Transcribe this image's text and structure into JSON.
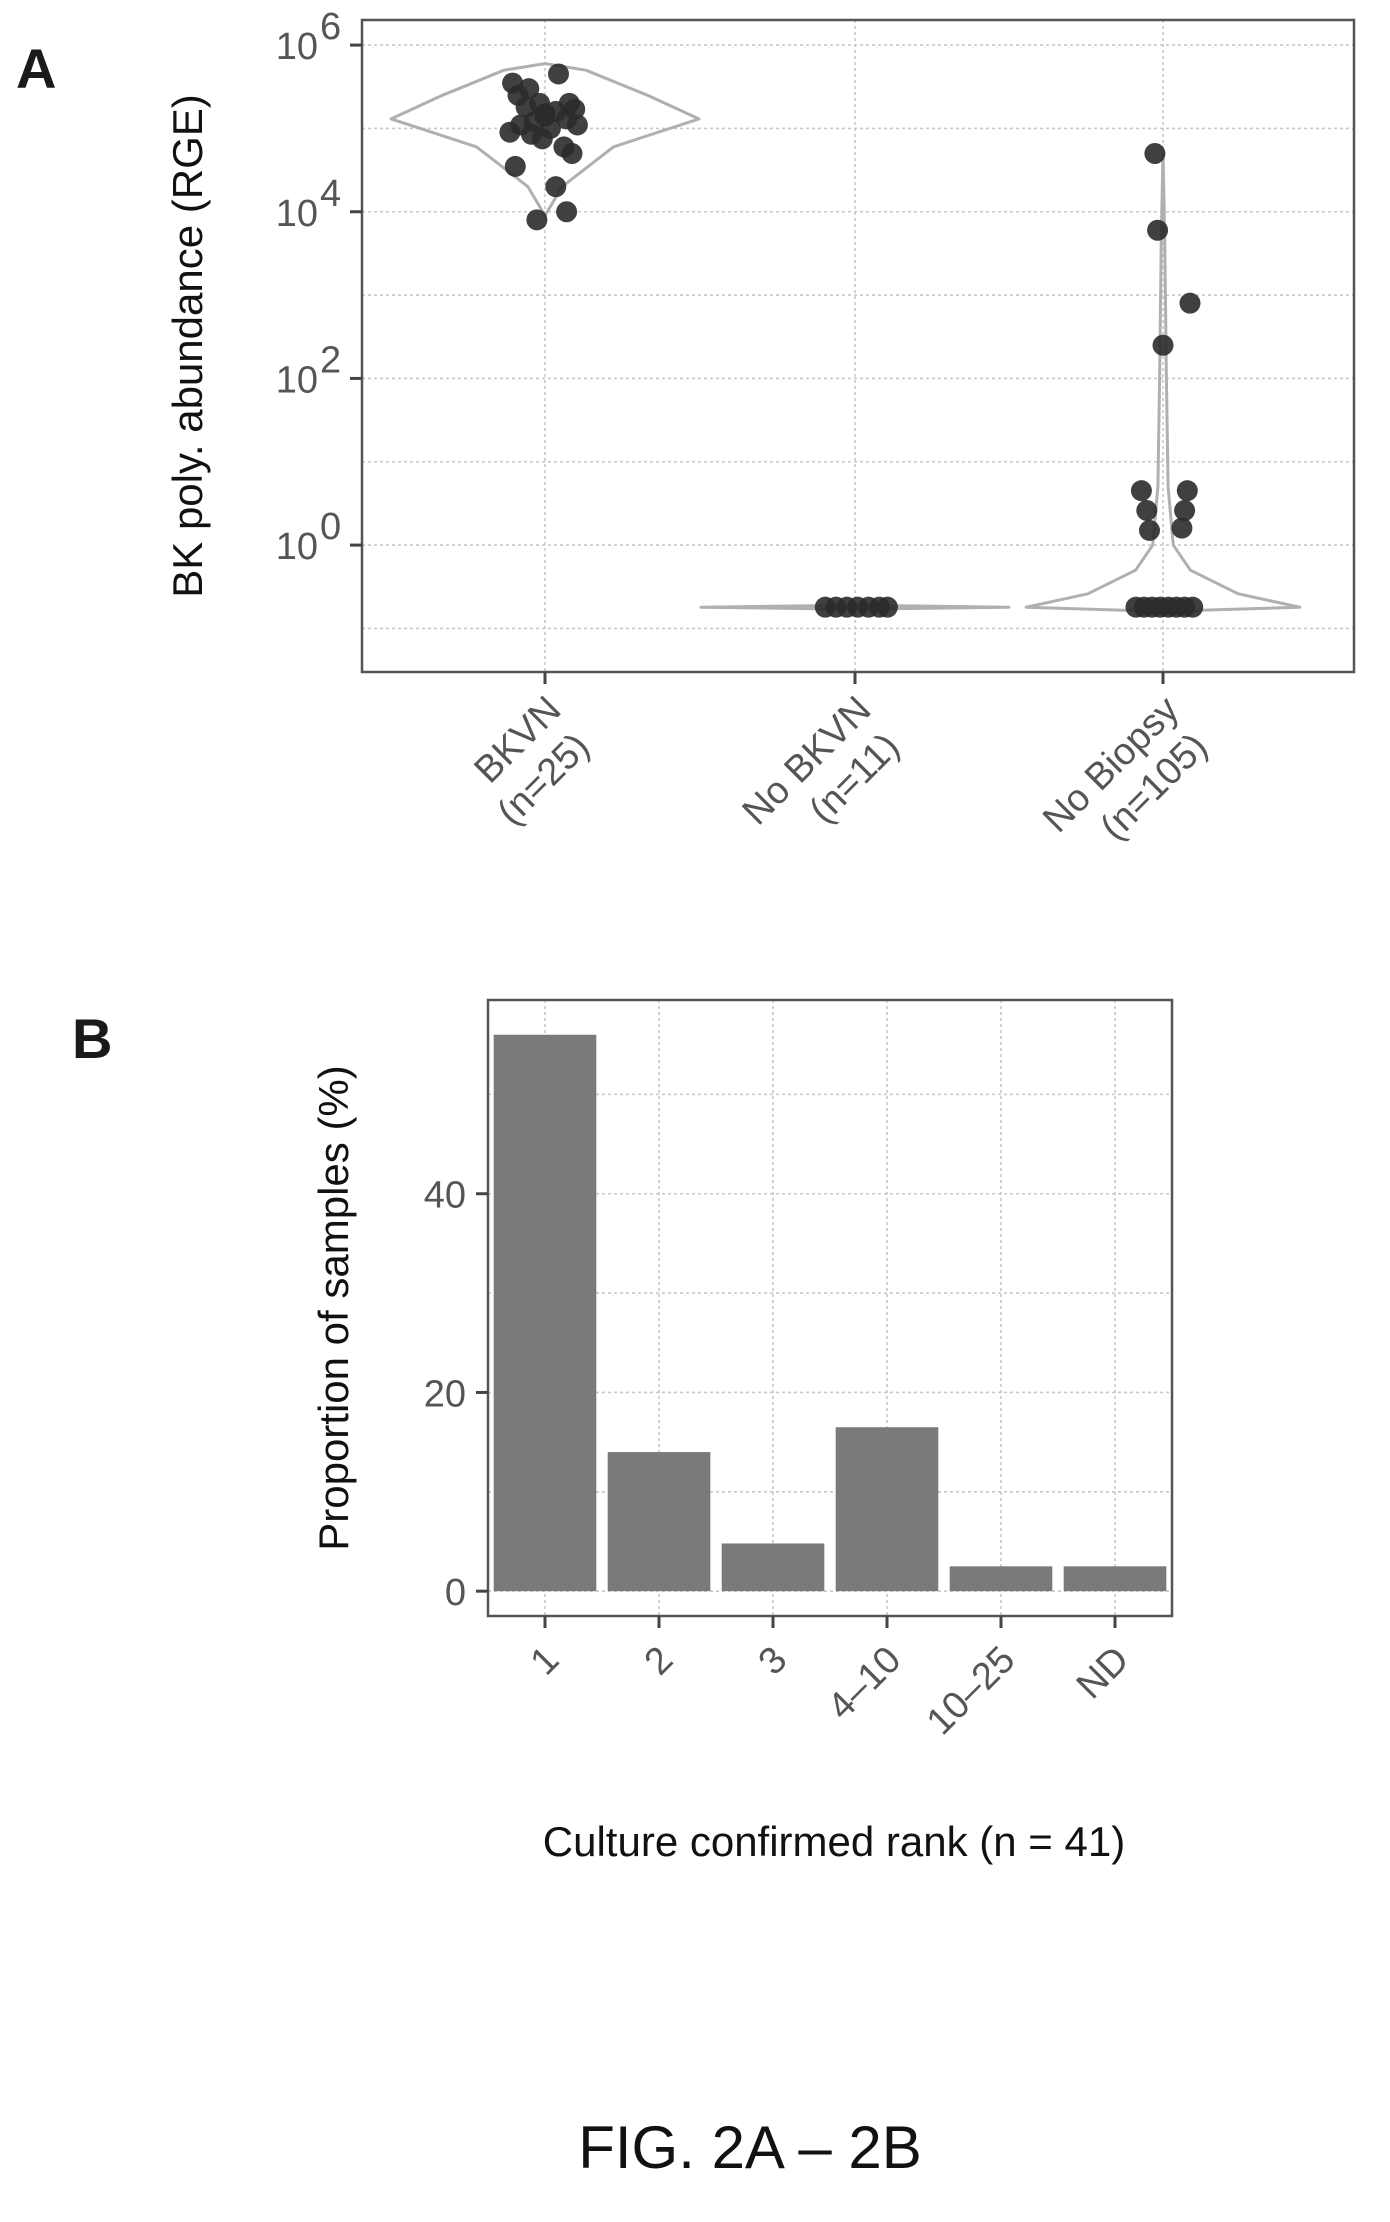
{
  "figure_caption": "FIG. 2A – 2B",
  "chart_data": [
    {
      "panel": "A",
      "type": "scatter",
      "overlay": "violin",
      "ylabel": "BK poly. abundance (RGE)",
      "yscale": "log",
      "ylim": [
        0.03,
        2000000
      ],
      "yticks": [
        {
          "value": 1,
          "base": "10",
          "exp": "0"
        },
        {
          "value": 100,
          "base": "10",
          "exp": "2"
        },
        {
          "value": 10000,
          "base": "10",
          "exp": "4"
        },
        {
          "value": 1000000,
          "base": "10",
          "exp": "6"
        }
      ],
      "grid": true,
      "categories": [
        {
          "line1": "BKVN",
          "line2": "(n=25)"
        },
        {
          "line1": "No BKVN",
          "line2": "(n=11)"
        },
        {
          "line1": "No Biopsy",
          "line2": "(n=105)"
        }
      ],
      "points": [
        {
          "cat": 0,
          "dx": -0.12,
          "y": 350000
        },
        {
          "cat": 0,
          "dx": -0.1,
          "y": 250000
        },
        {
          "cat": 0,
          "dx": -0.06,
          "y": 300000
        },
        {
          "cat": 0,
          "dx": 0.05,
          "y": 450000
        },
        {
          "cat": 0,
          "dx": -0.02,
          "y": 200000
        },
        {
          "cat": 0,
          "dx": 0.0,
          "y": 150000
        },
        {
          "cat": 0,
          "dx": 0.04,
          "y": 160000
        },
        {
          "cat": 0,
          "dx": 0.09,
          "y": 200000
        },
        {
          "cat": 0,
          "dx": 0.11,
          "y": 170000
        },
        {
          "cat": 0,
          "dx": 0.08,
          "y": 130000
        },
        {
          "cat": 0,
          "dx": -0.04,
          "y": 120000
        },
        {
          "cat": 0,
          "dx": -0.09,
          "y": 110000
        },
        {
          "cat": 0,
          "dx": -0.13,
          "y": 90000
        },
        {
          "cat": 0,
          "dx": 0.02,
          "y": 100000
        },
        {
          "cat": 0,
          "dx": -0.05,
          "y": 85000
        },
        {
          "cat": 0,
          "dx": 0.12,
          "y": 110000
        },
        {
          "cat": 0,
          "dx": -0.01,
          "y": 75000
        },
        {
          "cat": 0,
          "dx": 0.07,
          "y": 60000
        },
        {
          "cat": 0,
          "dx": 0.1,
          "y": 50000
        },
        {
          "cat": 0,
          "dx": -0.11,
          "y": 35000
        },
        {
          "cat": 0,
          "dx": 0.04,
          "y": 20000
        },
        {
          "cat": 0,
          "dx": 0.08,
          "y": 10000
        },
        {
          "cat": 0,
          "dx": -0.03,
          "y": 8000
        },
        {
          "cat": 0,
          "dx": 0.0,
          "y": 140000
        },
        {
          "cat": 0,
          "dx": -0.07,
          "y": 180000
        },
        {
          "cat": 1,
          "dx": -0.11,
          "y": 0.18
        },
        {
          "cat": 1,
          "dx": -0.07,
          "y": 0.18
        },
        {
          "cat": 1,
          "dx": -0.03,
          "y": 0.18
        },
        {
          "cat": 1,
          "dx": 0.01,
          "y": 0.18
        },
        {
          "cat": 1,
          "dx": 0.05,
          "y": 0.18
        },
        {
          "cat": 1,
          "dx": 0.09,
          "y": 0.18
        },
        {
          "cat": 1,
          "dx": 0.12,
          "y": 0.18
        },
        {
          "cat": 2,
          "dx": -0.03,
          "y": 50000
        },
        {
          "cat": 2,
          "dx": -0.02,
          "y": 6000
        },
        {
          "cat": 2,
          "dx": 0.1,
          "y": 800
        },
        {
          "cat": 2,
          "dx": 0.0,
          "y": 250
        },
        {
          "cat": 2,
          "dx": -0.08,
          "y": 4.5
        },
        {
          "cat": 2,
          "dx": 0.09,
          "y": 4.5
        },
        {
          "cat": 2,
          "dx": -0.06,
          "y": 2.6
        },
        {
          "cat": 2,
          "dx": 0.08,
          "y": 2.6
        },
        {
          "cat": 2,
          "dx": -0.05,
          "y": 1.5
        },
        {
          "cat": 2,
          "dx": 0.07,
          "y": 1.6
        },
        {
          "cat": 2,
          "dx": -0.1,
          "y": 0.18
        },
        {
          "cat": 2,
          "dx": -0.07,
          "y": 0.18
        },
        {
          "cat": 2,
          "dx": -0.04,
          "y": 0.18
        },
        {
          "cat": 2,
          "dx": -0.01,
          "y": 0.18
        },
        {
          "cat": 2,
          "dx": 0.02,
          "y": 0.18
        },
        {
          "cat": 2,
          "dx": 0.05,
          "y": 0.18
        },
        {
          "cat": 2,
          "dx": 0.08,
          "y": 0.18
        },
        {
          "cat": 2,
          "dx": 0.11,
          "y": 0.18
        }
      ],
      "violins": [
        {
          "cat": 0,
          "profile": [
            [
              9000,
              0.0
            ],
            [
              20000,
              0.05
            ],
            [
              60000,
              0.2
            ],
            [
              130000,
              0.45
            ],
            [
              250000,
              0.3
            ],
            [
              500000,
              0.12
            ],
            [
              600000,
              0.0
            ]
          ]
        },
        {
          "cat": 1,
          "profile": [
            [
              0.17,
              0.0
            ],
            [
              0.18,
              0.45
            ],
            [
              0.19,
              0.0
            ]
          ]
        },
        {
          "cat": 2,
          "profile": [
            [
              0.16,
              0.0
            ],
            [
              0.18,
              0.4
            ],
            [
              0.26,
              0.22
            ],
            [
              0.5,
              0.08
            ],
            [
              1,
              0.03
            ],
            [
              5,
              0.015
            ],
            [
              100,
              0.01
            ],
            [
              5000,
              0.005
            ],
            [
              50000,
              0.0
            ]
          ]
        }
      ]
    },
    {
      "panel": "B",
      "type": "bar",
      "xlabel": "Culture confirmed rank (n = 41)",
      "ylabel": "Proportion of samples (%)",
      "categories": [
        "1",
        "2",
        "3",
        "4–10",
        "10–25",
        "ND"
      ],
      "values": [
        56,
        14,
        4.8,
        16.5,
        2.5,
        2.5
      ],
      "ylim": [
        -2.5,
        59.5
      ],
      "yticks": [
        0,
        20,
        40
      ],
      "grid": true
    }
  ],
  "colors": {
    "points": "#2b2b2b",
    "violin_outline": "#b0b0b0",
    "bars": "#7a7a7a",
    "tick_labels": "#555555"
  }
}
